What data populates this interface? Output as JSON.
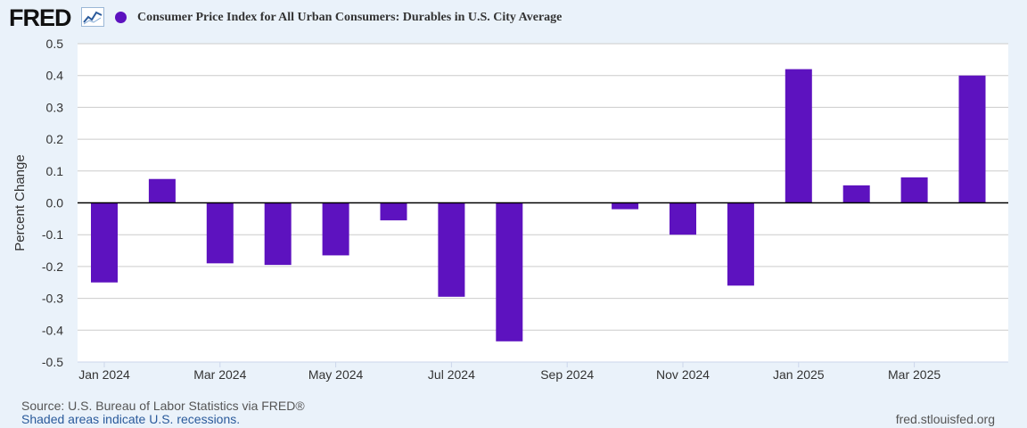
{
  "brand": {
    "name": "FRED",
    "icon": "trend-line-icon"
  },
  "legend": {
    "label": "Consumer Price Index for All Urban Consumers: Durables in U.S. City Average"
  },
  "colors": {
    "bar": "#5d12bf",
    "grid": "#cccccc",
    "zero": "#000000",
    "plot_bg": "#ffffff",
    "page_bg": "#eaf2fa"
  },
  "footer": {
    "source": "Source: U.S. Bureau of Labor Statistics via FRED®",
    "recession_note": "Shaded areas indicate U.S. recessions.",
    "site": "fred.stlouisfed.org"
  },
  "chart_data": {
    "type": "bar",
    "title": "Consumer Price Index for All Urban Consumers: Durables in U.S. City Average",
    "xlabel": "",
    "ylabel": "Percent Change",
    "ylim": [
      -0.5,
      0.5
    ],
    "yticks": [
      0.5,
      0.4,
      0.3,
      0.2,
      0.1,
      0.0,
      -0.1,
      -0.2,
      -0.3,
      -0.4,
      -0.5
    ],
    "ytick_labels": [
      "0.5",
      "0.4",
      "0.3",
      "0.2",
      "0.1",
      "0.0",
      "-0.1",
      "-0.2",
      "-0.3",
      "-0.4",
      "-0.5"
    ],
    "categories": [
      "Jan 2024",
      "Feb 2024",
      "Mar 2024",
      "Apr 2024",
      "May 2024",
      "Jun 2024",
      "Jul 2024",
      "Aug 2024",
      "Sep 2024",
      "Oct 2024",
      "Nov 2024",
      "Dec 2024",
      "Jan 2025",
      "Feb 2025",
      "Mar 2025",
      "Apr 2025"
    ],
    "values": [
      -0.25,
      0.075,
      -0.19,
      -0.195,
      -0.165,
      -0.055,
      -0.295,
      -0.435,
      0.0,
      -0.02,
      -0.1,
      -0.26,
      0.42,
      0.055,
      0.08,
      0.4
    ],
    "xtick_indices": [
      0,
      2,
      4,
      6,
      8,
      10,
      12,
      14
    ],
    "xtick_labels": [
      "Jan 2024",
      "Mar 2024",
      "May 2024",
      "Jul 2024",
      "Sep 2024",
      "Nov 2024",
      "Jan 2025",
      "Mar 2025"
    ],
    "grid": true
  }
}
